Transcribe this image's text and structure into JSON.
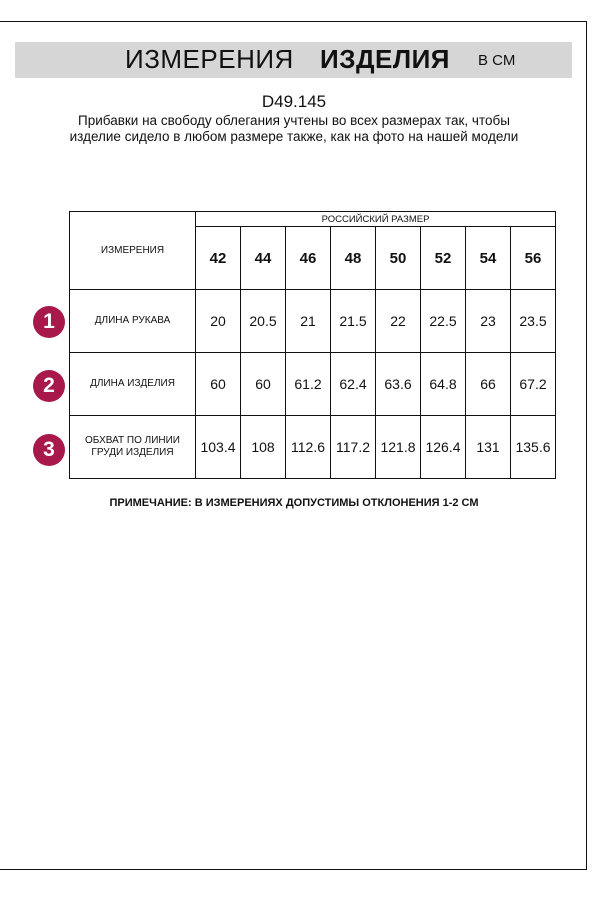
{
  "header": {
    "title_regular": "ИЗМЕРЕНИЯ",
    "title_bold": "ИЗДЕЛИЯ",
    "unit": "В СМ"
  },
  "product_code": "D49.145",
  "description": "Прибавки на свободу облегания учтены во всех размерах так, чтобы изделие сидело в любом размере также, как на фото на нашей модели",
  "table": {
    "measure_header": "ИЗМЕРЕНИЯ",
    "size_header": "РОССИЙСКИЙ РАЗМЕР",
    "sizes": [
      "42",
      "44",
      "46",
      "48",
      "50",
      "52",
      "54",
      "56"
    ],
    "rows": [
      {
        "num": "1",
        "label": "ДЛИНА РУКАВА",
        "values": [
          "20",
          "20.5",
          "21",
          "21.5",
          "22",
          "22.5",
          "23",
          "23.5"
        ]
      },
      {
        "num": "2",
        "label": "ДЛИНА ИЗДЕЛИЯ",
        "values": [
          "60",
          "60",
          "61.2",
          "62.4",
          "63.6",
          "64.8",
          "66",
          "67.2"
        ]
      },
      {
        "num": "3",
        "label": "ОБХВАТ ПО ЛИНИИ ГРУДИ ИЗДЕЛИЯ",
        "values": [
          "103.4",
          "108",
          "112.6",
          "117.2",
          "121.8",
          "126.4",
          "131",
          "135.6"
        ]
      }
    ]
  },
  "note": "ПРИМЕЧАНИЕ: В ИЗМЕРЕНИЯХ ДОПУСТИМЫ ОТКЛОНЕНИЯ 1-2 СМ",
  "colors": {
    "badge": "#a8184c",
    "band": "#d6d6d6"
  }
}
